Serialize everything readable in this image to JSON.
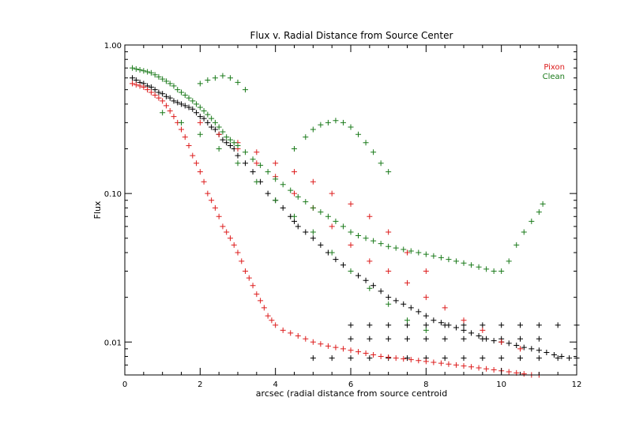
{
  "chart_data": {
    "type": "scatter",
    "title": "Flux v. Radial Distance from Source Center",
    "xlabel": "arcsec (radial distance from source centroid",
    "ylabel": "Flux",
    "xlim": [
      0,
      12
    ],
    "ylim": [
      0.006,
      1.0
    ],
    "yscale": "log",
    "grid": false,
    "legend_position": "top-right",
    "x_ticks": [
      0,
      2,
      4,
      6,
      8,
      10,
      12
    ],
    "x_tick_labels": [
      "0",
      "2",
      "4",
      "6",
      "8",
      "10",
      "12"
    ],
    "y_ticks": [
      0.01,
      0.1,
      1.0
    ],
    "y_tick_labels": [
      "0.01",
      "0.10",
      "1.00"
    ],
    "marker": "+",
    "colors": {
      "black": "#000000",
      "Pixon": "#dd1c1c",
      "Clean": "#1a7a1a"
    },
    "series": [
      {
        "name": "",
        "color": "#000000",
        "x": [
          0.2,
          0.3,
          0.4,
          0.5,
          0.6,
          0.7,
          0.8,
          0.9,
          1.0,
          1.1,
          1.2,
          1.3,
          1.4,
          1.5,
          1.6,
          1.7,
          1.8,
          1.9,
          2.0,
          2.1,
          2.2,
          2.3,
          2.4,
          2.5,
          2.6,
          2.7,
          2.8,
          2.9,
          3.0,
          3.2,
          3.4,
          3.6,
          3.8,
          4.0,
          4.2,
          4.4,
          4.5,
          4.6,
          4.8,
          5.0,
          5.2,
          5.4,
          5.6,
          5.8,
          6.0,
          6.2,
          6.4,
          6.6,
          6.8,
          7.0,
          7.2,
          7.4,
          7.6,
          7.8,
          8.0,
          8.2,
          8.4,
          8.6,
          8.8,
          9.0,
          9.2,
          9.4,
          9.6,
          9.8,
          10.0,
          10.2,
          10.4,
          10.6,
          10.8,
          11.0,
          11.2,
          11.4,
          11.6,
          11.8,
          6.0,
          6.5,
          7.0,
          7.5,
          8.0,
          8.5,
          9.0,
          9.5,
          10.0,
          10.5,
          11.0,
          11.5,
          12.0,
          5.0,
          5.5,
          6.0,
          6.5,
          7.0,
          7.5,
          8.0,
          8.5,
          9.0,
          9.5,
          10.0,
          10.5,
          11.0,
          11.5,
          12.0,
          6.0,
          6.5,
          7.0,
          7.5,
          8.0,
          8.5,
          9.0,
          9.5,
          10.0,
          10.5,
          11.0
        ],
        "y": [
          0.6,
          0.58,
          0.56,
          0.55,
          0.53,
          0.52,
          0.5,
          0.48,
          0.47,
          0.45,
          0.44,
          0.42,
          0.41,
          0.4,
          0.39,
          0.38,
          0.37,
          0.35,
          0.33,
          0.32,
          0.3,
          0.28,
          0.27,
          0.25,
          0.23,
          0.22,
          0.21,
          0.2,
          0.18,
          0.16,
          0.14,
          0.12,
          0.1,
          0.09,
          0.08,
          0.07,
          0.065,
          0.06,
          0.055,
          0.05,
          0.045,
          0.04,
          0.036,
          0.033,
          0.03,
          0.028,
          0.026,
          0.024,
          0.022,
          0.02,
          0.019,
          0.018,
          0.017,
          0.016,
          0.015,
          0.014,
          0.0135,
          0.013,
          0.0125,
          0.012,
          0.0115,
          0.011,
          0.0105,
          0.0102,
          0.01,
          0.0098,
          0.0095,
          0.0092,
          0.009,
          0.0088,
          0.0085,
          0.0082,
          0.008,
          0.0078,
          0.013,
          0.013,
          0.013,
          0.013,
          0.013,
          0.013,
          0.013,
          0.013,
          0.013,
          0.013,
          0.013,
          0.013,
          0.013,
          0.0078,
          0.0078,
          0.0078,
          0.0078,
          0.0078,
          0.0078,
          0.0078,
          0.0078,
          0.0078,
          0.0078,
          0.0078,
          0.0078,
          0.0078,
          0.0078,
          0.0078,
          0.0105,
          0.0105,
          0.0105,
          0.0105,
          0.0105,
          0.0105,
          0.0105,
          0.0105,
          0.0105,
          0.0105,
          0.0105
        ]
      },
      {
        "name": "Pixon",
        "color": "#dd1c1c",
        "x": [
          0.2,
          0.3,
          0.4,
          0.5,
          0.6,
          0.7,
          0.8,
          0.9,
          1.0,
          1.1,
          1.2,
          1.3,
          1.4,
          1.5,
          1.6,
          1.7,
          1.8,
          1.9,
          2.0,
          2.1,
          2.2,
          2.3,
          2.4,
          2.5,
          2.6,
          2.7,
          2.8,
          2.9,
          3.0,
          3.1,
          3.2,
          3.3,
          3.4,
          3.5,
          3.6,
          3.7,
          3.8,
          3.9,
          4.0,
          4.2,
          4.4,
          4.6,
          4.8,
          5.0,
          5.2,
          5.4,
          5.6,
          5.8,
          6.0,
          6.2,
          6.4,
          6.6,
          6.8,
          7.0,
          7.2,
          7.4,
          7.6,
          7.8,
          8.0,
          8.2,
          8.4,
          8.6,
          8.8,
          9.0,
          9.2,
          9.4,
          9.6,
          9.8,
          10.0,
          10.2,
          10.4,
          10.6,
          10.8,
          11.0,
          2.0,
          2.5,
          3.0,
          3.5,
          4.0,
          4.5,
          5.0,
          5.5,
          6.0,
          6.5,
          7.0,
          7.5,
          8.0,
          8.5,
          9.0,
          9.5,
          10.0,
          10.5,
          3.0,
          3.5,
          4.0,
          4.5,
          5.0,
          5.5,
          6.0,
          6.5,
          7.0,
          7.5,
          8.0
        ],
        "y": [
          0.55,
          0.54,
          0.53,
          0.52,
          0.5,
          0.48,
          0.46,
          0.44,
          0.42,
          0.39,
          0.36,
          0.33,
          0.3,
          0.27,
          0.24,
          0.21,
          0.18,
          0.16,
          0.14,
          0.12,
          0.1,
          0.09,
          0.08,
          0.07,
          0.06,
          0.055,
          0.05,
          0.045,
          0.04,
          0.035,
          0.03,
          0.027,
          0.024,
          0.021,
          0.019,
          0.017,
          0.015,
          0.014,
          0.013,
          0.012,
          0.0115,
          0.011,
          0.0105,
          0.01,
          0.0097,
          0.0094,
          0.0092,
          0.009,
          0.0088,
          0.0086,
          0.0084,
          0.0082,
          0.008,
          0.0079,
          0.0078,
          0.0077,
          0.0076,
          0.0075,
          0.0074,
          0.0073,
          0.0072,
          0.0071,
          0.007,
          0.0069,
          0.0068,
          0.0067,
          0.0066,
          0.0065,
          0.0064,
          0.0063,
          0.0062,
          0.0061,
          0.006,
          0.006,
          0.3,
          0.25,
          0.2,
          0.16,
          0.13,
          0.1,
          0.08,
          0.06,
          0.045,
          0.035,
          0.03,
          0.025,
          0.02,
          0.017,
          0.014,
          0.012,
          0.01,
          0.009,
          0.22,
          0.19,
          0.16,
          0.14,
          0.12,
          0.1,
          0.085,
          0.07,
          0.055,
          0.04,
          0.03
        ]
      },
      {
        "name": "Clean",
        "color": "#1a7a1a",
        "x": [
          0.2,
          0.3,
          0.4,
          0.5,
          0.6,
          0.7,
          0.8,
          0.9,
          1.0,
          1.1,
          1.2,
          1.3,
          1.4,
          1.5,
          1.6,
          1.7,
          1.8,
          1.9,
          2.0,
          2.1,
          2.2,
          2.3,
          2.4,
          2.5,
          2.6,
          2.7,
          2.8,
          2.9,
          3.0,
          3.2,
          3.4,
          3.6,
          3.8,
          4.0,
          4.2,
          4.4,
          4.6,
          4.8,
          5.0,
          5.2,
          5.4,
          5.6,
          5.8,
          6.0,
          6.2,
          6.4,
          6.6,
          6.8,
          7.0,
          7.2,
          7.4,
          7.6,
          7.8,
          8.0,
          8.2,
          8.4,
          8.6,
          8.8,
          9.0,
          9.2,
          9.4,
          9.6,
          9.8,
          10.0,
          10.2,
          10.4,
          10.6,
          10.8,
          11.0,
          11.1,
          4.5,
          4.8,
          5.0,
          5.2,
          5.4,
          5.6,
          5.8,
          6.0,
          6.2,
          6.4,
          6.6,
          6.8,
          7.0,
          2.0,
          2.2,
          2.4,
          2.6,
          2.8,
          3.0,
          3.2,
          1.0,
          1.5,
          2.0,
          2.5,
          3.0,
          3.5,
          4.0,
          4.5,
          5.0,
          5.5,
          6.0,
          6.5,
          7.0,
          7.5,
          8.0
        ],
        "y": [
          0.7,
          0.69,
          0.68,
          0.67,
          0.66,
          0.65,
          0.63,
          0.61,
          0.59,
          0.57,
          0.55,
          0.53,
          0.5,
          0.48,
          0.46,
          0.44,
          0.42,
          0.4,
          0.38,
          0.36,
          0.34,
          0.32,
          0.3,
          0.28,
          0.26,
          0.24,
          0.23,
          0.22,
          0.21,
          0.19,
          0.17,
          0.155,
          0.14,
          0.125,
          0.115,
          0.105,
          0.095,
          0.088,
          0.08,
          0.075,
          0.07,
          0.065,
          0.06,
          0.055,
          0.052,
          0.05,
          0.048,
          0.046,
          0.044,
          0.043,
          0.042,
          0.041,
          0.04,
          0.039,
          0.038,
          0.037,
          0.036,
          0.035,
          0.034,
          0.033,
          0.032,
          0.031,
          0.03,
          0.03,
          0.035,
          0.045,
          0.055,
          0.065,
          0.075,
          0.085,
          0.2,
          0.24,
          0.27,
          0.29,
          0.3,
          0.31,
          0.3,
          0.28,
          0.25,
          0.22,
          0.19,
          0.16,
          0.14,
          0.55,
          0.58,
          0.6,
          0.62,
          0.6,
          0.56,
          0.5,
          0.35,
          0.3,
          0.25,
          0.2,
          0.16,
          0.12,
          0.09,
          0.07,
          0.055,
          0.04,
          0.03,
          0.023,
          0.018,
          0.014,
          0.012
        ]
      }
    ],
    "legend": [
      "Pixon",
      "Clean"
    ]
  }
}
